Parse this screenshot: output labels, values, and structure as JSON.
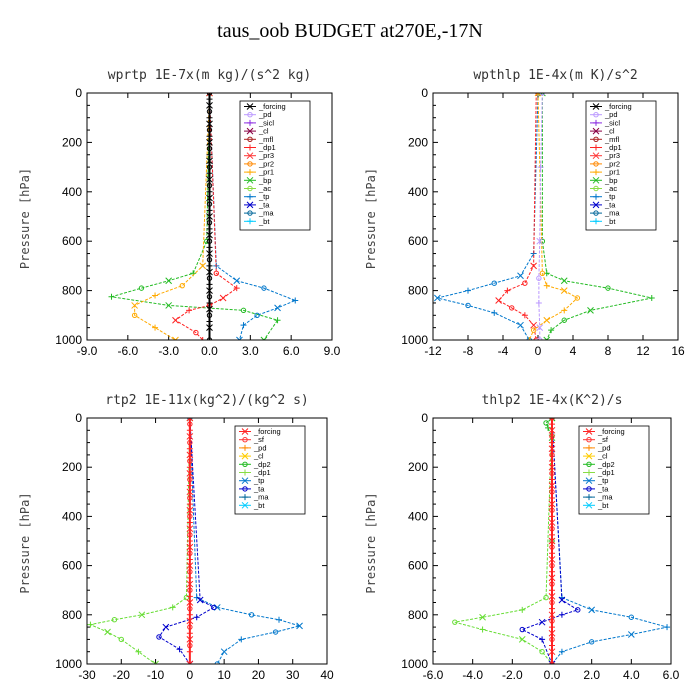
{
  "title": "taus_oob  BUDGET at270E,-17N",
  "chart_data": [
    {
      "type": "line",
      "title": "wprtp  1E-7x(m kg)/(s^2 kg)",
      "ylabel": "Pressure [hPa]",
      "xlim": [
        -9,
        9
      ],
      "xticks": [
        "-9.0",
        "-6.0",
        "-3.0",
        "0.0",
        "3.0",
        "6.0",
        "9.0"
      ],
      "xtick_values": [
        -9,
        -6,
        -3,
        0,
        3,
        6,
        9
      ],
      "ylim": [
        1000,
        0
      ],
      "yticks": [
        0,
        200,
        400,
        600,
        800,
        1000
      ],
      "legend": [
        "_forcing",
        "_pd",
        "_sicl",
        "_cl",
        "_mfl",
        "_dp1",
        "_pr3",
        "_pr2",
        "_pr1",
        "_bp",
        "_ac",
        "_tp",
        "_ta",
        "_ma",
        "_bt"
      ],
      "legend_colors": [
        "#000000",
        "#bb99ff",
        "#8a2be2",
        "#880044",
        "#aa2222",
        "#ff2222",
        "#ff3333",
        "#ff8800",
        "#ffaa00",
        "#22bb22",
        "#88dd44",
        "#0077cc",
        "#0000cc",
        "#006699",
        "#00ccff"
      ],
      "series": [
        {
          "name": "_bp",
          "color": "#22bb22",
          "x": [
            0,
            -0.2,
            -1.2,
            -3,
            -5,
            -7.2,
            -3,
            2.5,
            5,
            4
          ],
          "y": [
            0,
            600,
            730,
            760,
            790,
            825,
            860,
            880,
            920,
            1000
          ]
        },
        {
          "name": "_ta",
          "color": "#0077cc",
          "x": [
            0,
            0.5,
            2,
            4,
            6.3,
            5,
            3.5,
            2.5,
            2.2
          ],
          "y": [
            0,
            700,
            760,
            790,
            840,
            870,
            900,
            940,
            1000
          ]
        },
        {
          "name": "_ac",
          "color": "#ffaa00",
          "x": [
            0,
            -0.5,
            -2,
            -4,
            -5.5,
            -5.5,
            -4,
            -2.5
          ],
          "y": [
            0,
            700,
            780,
            820,
            860,
            900,
            950,
            1000
          ]
        },
        {
          "name": "_pr1",
          "color": "#ff2222",
          "x": [
            0,
            0.5,
            2,
            1,
            0,
            -1.5,
            -2.5,
            -1,
            -0.5
          ],
          "y": [
            0,
            730,
            790,
            830,
            860,
            880,
            920,
            970,
            1000
          ]
        },
        {
          "name": "_forcing",
          "color": "#000000",
          "x": [
            0,
            0,
            0,
            0,
            0,
            0,
            0,
            0,
            0,
            0,
            0,
            0,
            0,
            0,
            0,
            0,
            0,
            0,
            0,
            0,
            0,
            0,
            0,
            0,
            0,
            0,
            0,
            0,
            0,
            0,
            0,
            0,
            0,
            0,
            0,
            0,
            0,
            0,
            0,
            0
          ],
          "y": [
            0,
            25,
            50,
            75,
            100,
            125,
            150,
            175,
            200,
            225,
            250,
            275,
            300,
            325,
            350,
            375,
            400,
            425,
            450,
            475,
            500,
            525,
            550,
            575,
            600,
            625,
            650,
            675,
            700,
            725,
            750,
            775,
            800,
            825,
            850,
            875,
            900,
            925,
            950,
            1000
          ]
        }
      ]
    },
    {
      "type": "line",
      "title": "wpthlp  1E-4x(m K)/s^2",
      "ylabel": "Pressure [hPa]",
      "xlim": [
        -12,
        16
      ],
      "xticks": [
        "-12",
        "-8",
        "-4",
        "0",
        "4",
        "8",
        "12",
        "16"
      ],
      "xtick_values": [
        -12,
        -8,
        -4,
        0,
        4,
        8,
        12,
        16
      ],
      "ylim": [
        1000,
        0
      ],
      "yticks": [
        0,
        200,
        400,
        600,
        800,
        1000
      ],
      "legend": [
        "_forcing",
        "_pd",
        "_sicl",
        "_cl",
        "_mfl",
        "_dp1",
        "_pr3",
        "_pr2",
        "_pr1",
        "_bp",
        "_ac",
        "_tp",
        "_ta",
        "_ma",
        "_bt"
      ],
      "legend_colors": [
        "#000000",
        "#bb99ff",
        "#8a2be2",
        "#880044",
        "#aa2222",
        "#ff2222",
        "#ff3333",
        "#ff8800",
        "#ffaa00",
        "#22bb22",
        "#88dd44",
        "#0077cc",
        "#0000cc",
        "#006699",
        "#00ccff"
      ],
      "series": [
        {
          "name": "_bp",
          "color": "#22bb22",
          "x": [
            0.5,
            0.5,
            1,
            3,
            8,
            13,
            6,
            3,
            1.5,
            1
          ],
          "y": [
            0,
            600,
            730,
            760,
            790,
            830,
            880,
            920,
            960,
            1000
          ]
        },
        {
          "name": "_ta",
          "color": "#0077cc",
          "x": [
            0,
            -0.5,
            -2,
            -5,
            -8,
            -11.5,
            -8,
            -5,
            -2,
            -1
          ],
          "y": [
            0,
            650,
            740,
            770,
            800,
            830,
            860,
            890,
            940,
            1000
          ]
        },
        {
          "name": "_pr1",
          "color": "#ff2222",
          "x": [
            -0.2,
            -0.5,
            -1.5,
            -3.5,
            -4.5,
            -3,
            -1.5,
            -0.5,
            -0.2
          ],
          "y": [
            0,
            700,
            770,
            800,
            840,
            870,
            900,
            940,
            1000
          ]
        },
        {
          "name": "_ac",
          "color": "#ffaa00",
          "x": [
            0,
            0.5,
            1,
            3,
            4.5,
            3,
            1,
            -0.5,
            -1
          ],
          "y": [
            0,
            730,
            780,
            800,
            830,
            880,
            920,
            960,
            1000
          ]
        },
        {
          "name": "_pd",
          "color": "#bb99ff",
          "x": [
            0.5,
            0.3,
            0.2,
            0.1,
            0.1,
            0.2,
            0.2
          ],
          "y": [
            0,
            300,
            600,
            750,
            850,
            950,
            1000
          ]
        }
      ]
    },
    {
      "type": "line",
      "title": "rtp2  1E-11x(kg^2)/(kg^2 s)",
      "ylabel": "Pressure [hPa]",
      "xlim": [
        -30,
        40
      ],
      "xticks": [
        "-30",
        "-20",
        "-10",
        "0",
        "10",
        "20",
        "30",
        "40"
      ],
      "xtick_values": [
        -30,
        -20,
        -10,
        0,
        10,
        20,
        30,
        40
      ],
      "ylim": [
        1000,
        0
      ],
      "yticks": [
        0,
        200,
        400,
        600,
        800,
        1000
      ],
      "legend": [
        "_forcing",
        "_sf",
        "_pd",
        "_cl",
        "_dp2",
        "_dp1",
        "_tp",
        "_ta",
        "_ma",
        "_bt"
      ],
      "legend_colors": [
        "#ff2222",
        "#ff3333",
        "#ff8800",
        "#ffcc00",
        "#22bb22",
        "#88dd44",
        "#0077cc",
        "#0000cc",
        "#006699",
        "#00ccff"
      ],
      "series": [
        {
          "name": "_dp1",
          "color": "#66dd33",
          "x": [
            0,
            -1,
            -5,
            -14,
            -22,
            -29,
            -24,
            -20,
            -15,
            -10
          ],
          "y": [
            0,
            730,
            770,
            800,
            820,
            840,
            870,
            900,
            950,
            1000
          ]
        },
        {
          "name": "_tp",
          "color": "#0077cc",
          "x": [
            0,
            2,
            8,
            18,
            26,
            32,
            25,
            15,
            10,
            8
          ],
          "y": [
            0,
            730,
            770,
            800,
            820,
            845,
            870,
            900,
            950,
            1000
          ]
        },
        {
          "name": "_ta",
          "color": "#0000cc",
          "x": [
            0,
            3,
            7,
            2,
            -7,
            -9,
            -3,
            0
          ],
          "y": [
            0,
            740,
            770,
            810,
            850,
            890,
            940,
            1000
          ]
        },
        {
          "name": "_forcing",
          "color": "#ff2222",
          "x": [
            0,
            0,
            0,
            0,
            0,
            0,
            0,
            0,
            0,
            0,
            0,
            0,
            0,
            0,
            0,
            0,
            0,
            0,
            0,
            0,
            0,
            0,
            0,
            0,
            0,
            0,
            0,
            0,
            0,
            0,
            0,
            0,
            0,
            0,
            0,
            0,
            0,
            0,
            0,
            0
          ],
          "y": [
            0,
            25,
            50,
            75,
            100,
            125,
            150,
            175,
            200,
            225,
            250,
            275,
            300,
            325,
            350,
            375,
            400,
            425,
            450,
            475,
            500,
            525,
            550,
            575,
            600,
            625,
            650,
            675,
            700,
            725,
            750,
            775,
            800,
            825,
            850,
            875,
            900,
            925,
            950,
            1000
          ]
        }
      ]
    },
    {
      "type": "line",
      "title": "thlp2  1E-4x(K^2)/s",
      "ylabel": "Pressure [hPa]",
      "xlim": [
        -6,
        6
      ],
      "xticks": [
        "-6.0",
        "-4.0",
        "-2.0",
        "0.0",
        "2.0",
        "4.0",
        "6.0"
      ],
      "xtick_values": [
        -6,
        -4,
        -2,
        0,
        2,
        4,
        6
      ],
      "ylim": [
        1000,
        0
      ],
      "yticks": [
        0,
        200,
        400,
        600,
        800,
        1000
      ],
      "legend": [
        "_forcing",
        "_sf",
        "_pd",
        "_cl",
        "_dp2",
        "_dp1",
        "_tp",
        "_ta",
        "_ma",
        "_bt"
      ],
      "legend_colors": [
        "#ff2222",
        "#ff3333",
        "#ff8800",
        "#ffcc00",
        "#22bb22",
        "#88dd44",
        "#0077cc",
        "#0000cc",
        "#006699",
        "#00ccff"
      ],
      "series": [
        {
          "name": "_dp1",
          "color": "#66dd33",
          "x": [
            0,
            -0.3,
            -1.5,
            -3.5,
            -4.9,
            -3.5,
            -1.5,
            -0.5,
            0
          ],
          "y": [
            0,
            730,
            780,
            810,
            830,
            860,
            900,
            950,
            1000
          ]
        },
        {
          "name": "_tp",
          "color": "#0077cc",
          "x": [
            0,
            0.5,
            2,
            4,
            5.8,
            4,
            2,
            0.5,
            0
          ],
          "y": [
            0,
            730,
            780,
            810,
            850,
            880,
            910,
            950,
            1000
          ]
        },
        {
          "name": "_ta",
          "color": "#0000cc",
          "x": [
            0,
            0.5,
            1.3,
            0.5,
            -0.5,
            -1.5,
            -0.5,
            0
          ],
          "y": [
            0,
            740,
            780,
            800,
            830,
            860,
            900,
            1000
          ]
        },
        {
          "name": "_dp2",
          "color": "#22bb22",
          "x": [
            0,
            -0.3,
            -0.2,
            0,
            0,
            0
          ],
          "y": [
            0,
            20,
            40,
            80,
            500,
            1000
          ]
        },
        {
          "name": "_forcing",
          "color": "#ff2222",
          "x": [
            0,
            0,
            0,
            0,
            0,
            0,
            0,
            0,
            0,
            0,
            0,
            0,
            0,
            0,
            0,
            0,
            0,
            0,
            0,
            0,
            0,
            0,
            0,
            0,
            0,
            0,
            0,
            0,
            0,
            0,
            0,
            0,
            0,
            0,
            0,
            0,
            0,
            0,
            0,
            0
          ],
          "y": [
            0,
            25,
            50,
            75,
            100,
            125,
            150,
            175,
            200,
            225,
            250,
            275,
            300,
            325,
            350,
            375,
            400,
            425,
            450,
            475,
            500,
            525,
            550,
            575,
            600,
            625,
            650,
            675,
            700,
            725,
            750,
            775,
            800,
            825,
            850,
            875,
            900,
            925,
            950,
            1000
          ]
        }
      ]
    }
  ]
}
